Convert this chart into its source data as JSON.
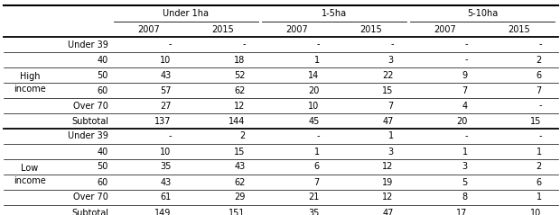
{
  "col_groups": [
    "Under 1ha",
    "1-5ha",
    "5-10ha"
  ],
  "col_years": [
    "2007",
    "2015",
    "2007",
    "2015",
    "2007",
    "2015"
  ],
  "row_labels_high": [
    "Under 39",
    "40",
    "50",
    "60",
    "Over 70",
    "Subtotal"
  ],
  "row_labels_low": [
    "Under 39",
    "40",
    "50",
    "60",
    "Over 70",
    "Subtotal"
  ],
  "data_high": [
    [
      "-",
      "-",
      "-",
      "-",
      "-",
      "-"
    ],
    [
      "10",
      "18",
      "1",
      "3",
      "-",
      "2"
    ],
    [
      "43",
      "52",
      "14",
      "22",
      "9",
      "6"
    ],
    [
      "57",
      "62",
      "20",
      "15",
      "7",
      "7"
    ],
    [
      "27",
      "12",
      "10",
      "7",
      "4",
      "-"
    ],
    [
      "137",
      "144",
      "45",
      "47",
      "20",
      "15"
    ]
  ],
  "data_low": [
    [
      "-",
      "2",
      "-",
      "1",
      "-",
      "-"
    ],
    [
      "10",
      "15",
      "1",
      "3",
      "1",
      "1"
    ],
    [
      "35",
      "43",
      "6",
      "12",
      "3",
      "2"
    ],
    [
      "43",
      "62",
      "7",
      "19",
      "5",
      "6"
    ],
    [
      "61",
      "29",
      "21",
      "12",
      "8",
      "1"
    ],
    [
      "149",
      "151",
      "35",
      "47",
      "17",
      "10"
    ]
  ],
  "font_size": 7.0,
  "bg_color": "white"
}
